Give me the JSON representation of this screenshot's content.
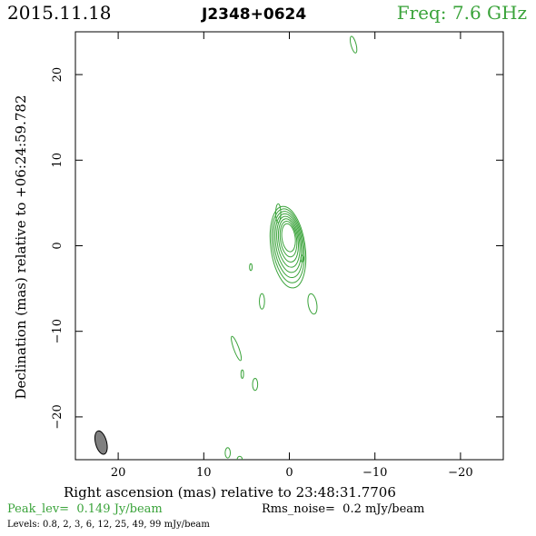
{
  "header": {
    "date": "2015.11.18",
    "source": "J2348+0624",
    "frequency": "Freq: 7.6 GHz"
  },
  "footer": {
    "peak_label": "Peak_lev=",
    "peak_value": "0.149 Jy/beam",
    "rms_label": "Rms_noise=",
    "rms_value": "0.2 mJy/beam",
    "levels_label": "Levels:",
    "levels_text": "0.8,   2,   3,   6,  12,  25,  49,  99 mJy/beam"
  },
  "colors": {
    "contour": "#3aa33a",
    "beam_fill": "#808080",
    "axis": "#000000"
  },
  "chart_data": {
    "type": "contour",
    "xlabel": "Right ascension (mas) relative to 23:48:31.7706",
    "ylabel": "Declination (mas) relative to +06:24:59.782",
    "xlim": [
      25,
      -25
    ],
    "ylim": [
      -25,
      25
    ],
    "x_ticks": [
      20,
      10,
      0,
      -10,
      -20
    ],
    "x_tick_labels": [
      "20",
      "10",
      "0",
      "−10",
      "−20"
    ],
    "y_ticks": [
      20,
      10,
      0,
      -10,
      -20
    ],
    "y_tick_labels": [
      "20",
      "10",
      "0",
      "−10",
      "−20"
    ],
    "levels_mJy": [
      0.8,
      2,
      3,
      6,
      12,
      25,
      49,
      99
    ],
    "core": {
      "x": 0.0,
      "y": 0.5,
      "levels": 8
    },
    "components": [
      {
        "x": -7.5,
        "y": 23.5,
        "rx": 0.3,
        "ry": 1.0,
        "angle": -15
      },
      {
        "x": 4.5,
        "y": -2.5,
        "rx": 0.15,
        "ry": 0.4,
        "angle": 0
      },
      {
        "x": -1.5,
        "y": -1.5,
        "rx": 0.15,
        "ry": 0.4,
        "angle": 0
      },
      {
        "x": 3.2,
        "y": -6.5,
        "rx": 0.3,
        "ry": 0.9,
        "angle": 0
      },
      {
        "x": -2.7,
        "y": -6.8,
        "rx": 0.5,
        "ry": 1.2,
        "angle": -10
      },
      {
        "x": 6.2,
        "y": -12.0,
        "rx": 0.3,
        "ry": 1.5,
        "angle": -20
      },
      {
        "x": 5.5,
        "y": -15.0,
        "rx": 0.15,
        "ry": 0.5,
        "angle": 0
      },
      {
        "x": 4.0,
        "y": -16.2,
        "rx": 0.3,
        "ry": 0.7,
        "angle": 0
      },
      {
        "x": 7.2,
        "y": -24.2,
        "rx": 0.3,
        "ry": 0.6,
        "angle": 0
      },
      {
        "x": 5.8,
        "y": -25.0,
        "rx": 0.3,
        "ry": 0.4,
        "angle": 0
      }
    ],
    "beam": {
      "x": 22.0,
      "y": -23.0,
      "major": 2.8,
      "minor": 1.3,
      "pa": -15
    }
  }
}
